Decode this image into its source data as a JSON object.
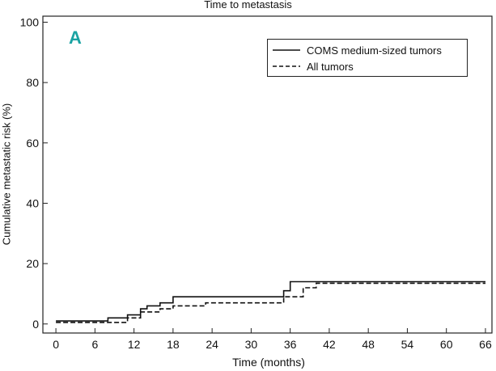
{
  "chart_data": {
    "type": "line",
    "title": "Time to metastasis",
    "panel_letter": "A",
    "xlabel": "Time (months)",
    "ylabel": "Cumulative metastatic risk (%)",
    "xlim": [
      -2,
      67
    ],
    "ylim": [
      -3,
      102
    ],
    "x_ticks": [
      0,
      6,
      12,
      18,
      24,
      30,
      36,
      42,
      48,
      54,
      60,
      66
    ],
    "y_ticks": [
      0,
      20,
      40,
      60,
      80,
      100
    ],
    "legend_position": "top-right",
    "grid": false,
    "series": [
      {
        "name": "COMS medium-sized tumors",
        "style": "solid",
        "points": [
          [
            0,
            1
          ],
          [
            8,
            1
          ],
          [
            8,
            2
          ],
          [
            11,
            2
          ],
          [
            11,
            3
          ],
          [
            13,
            3
          ],
          [
            13,
            5
          ],
          [
            14,
            5
          ],
          [
            14,
            6
          ],
          [
            16,
            6
          ],
          [
            16,
            7
          ],
          [
            18,
            7
          ],
          [
            18,
            9
          ],
          [
            35,
            9
          ],
          [
            35,
            11
          ],
          [
            36,
            11
          ],
          [
            36,
            14
          ],
          [
            66,
            14
          ]
        ]
      },
      {
        "name": "All tumors",
        "style": "dashed",
        "points": [
          [
            0,
            0.5
          ],
          [
            11,
            0.5
          ],
          [
            11,
            2
          ],
          [
            13,
            2
          ],
          [
            13,
            4
          ],
          [
            16,
            4
          ],
          [
            16,
            5
          ],
          [
            18,
            5
          ],
          [
            18,
            6
          ],
          [
            23,
            6
          ],
          [
            23,
            7
          ],
          [
            35,
            7
          ],
          [
            35,
            9
          ],
          [
            38,
            9
          ],
          [
            38,
            12
          ],
          [
            40,
            12
          ],
          [
            40,
            13.5
          ],
          [
            66,
            13.5
          ]
        ]
      }
    ]
  }
}
